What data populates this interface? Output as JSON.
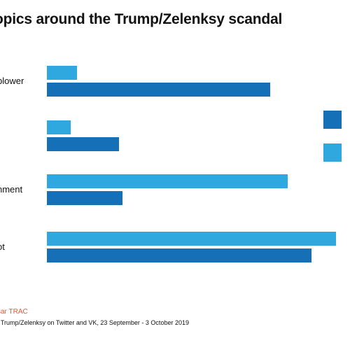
{
  "header": {
    "title": "opics around the Trump/Zelenksy scandal"
  },
  "chart_data": {
    "type": "bar",
    "orientation": "horizontal",
    "title": "opics around the Trump/Zelenksy scandal",
    "categories": [
      "blower",
      "",
      "nment",
      "ot"
    ],
    "series": [
      {
        "color": "#2FA8E0",
        "values": [
          43,
          34,
          344,
          413
        ]
      },
      {
        "color": "#1570B7",
        "values": [
          319,
          103,
          108,
          378
        ]
      }
    ],
    "legend": {
      "placement": "right",
      "labels": [
        "",
        ""
      ]
    },
    "grid": false
  },
  "footer": {
    "source": "sar TRAC",
    "note": "f Trump/Zelenksy on Twitter and VK, 23 September - 3  October 2019"
  }
}
